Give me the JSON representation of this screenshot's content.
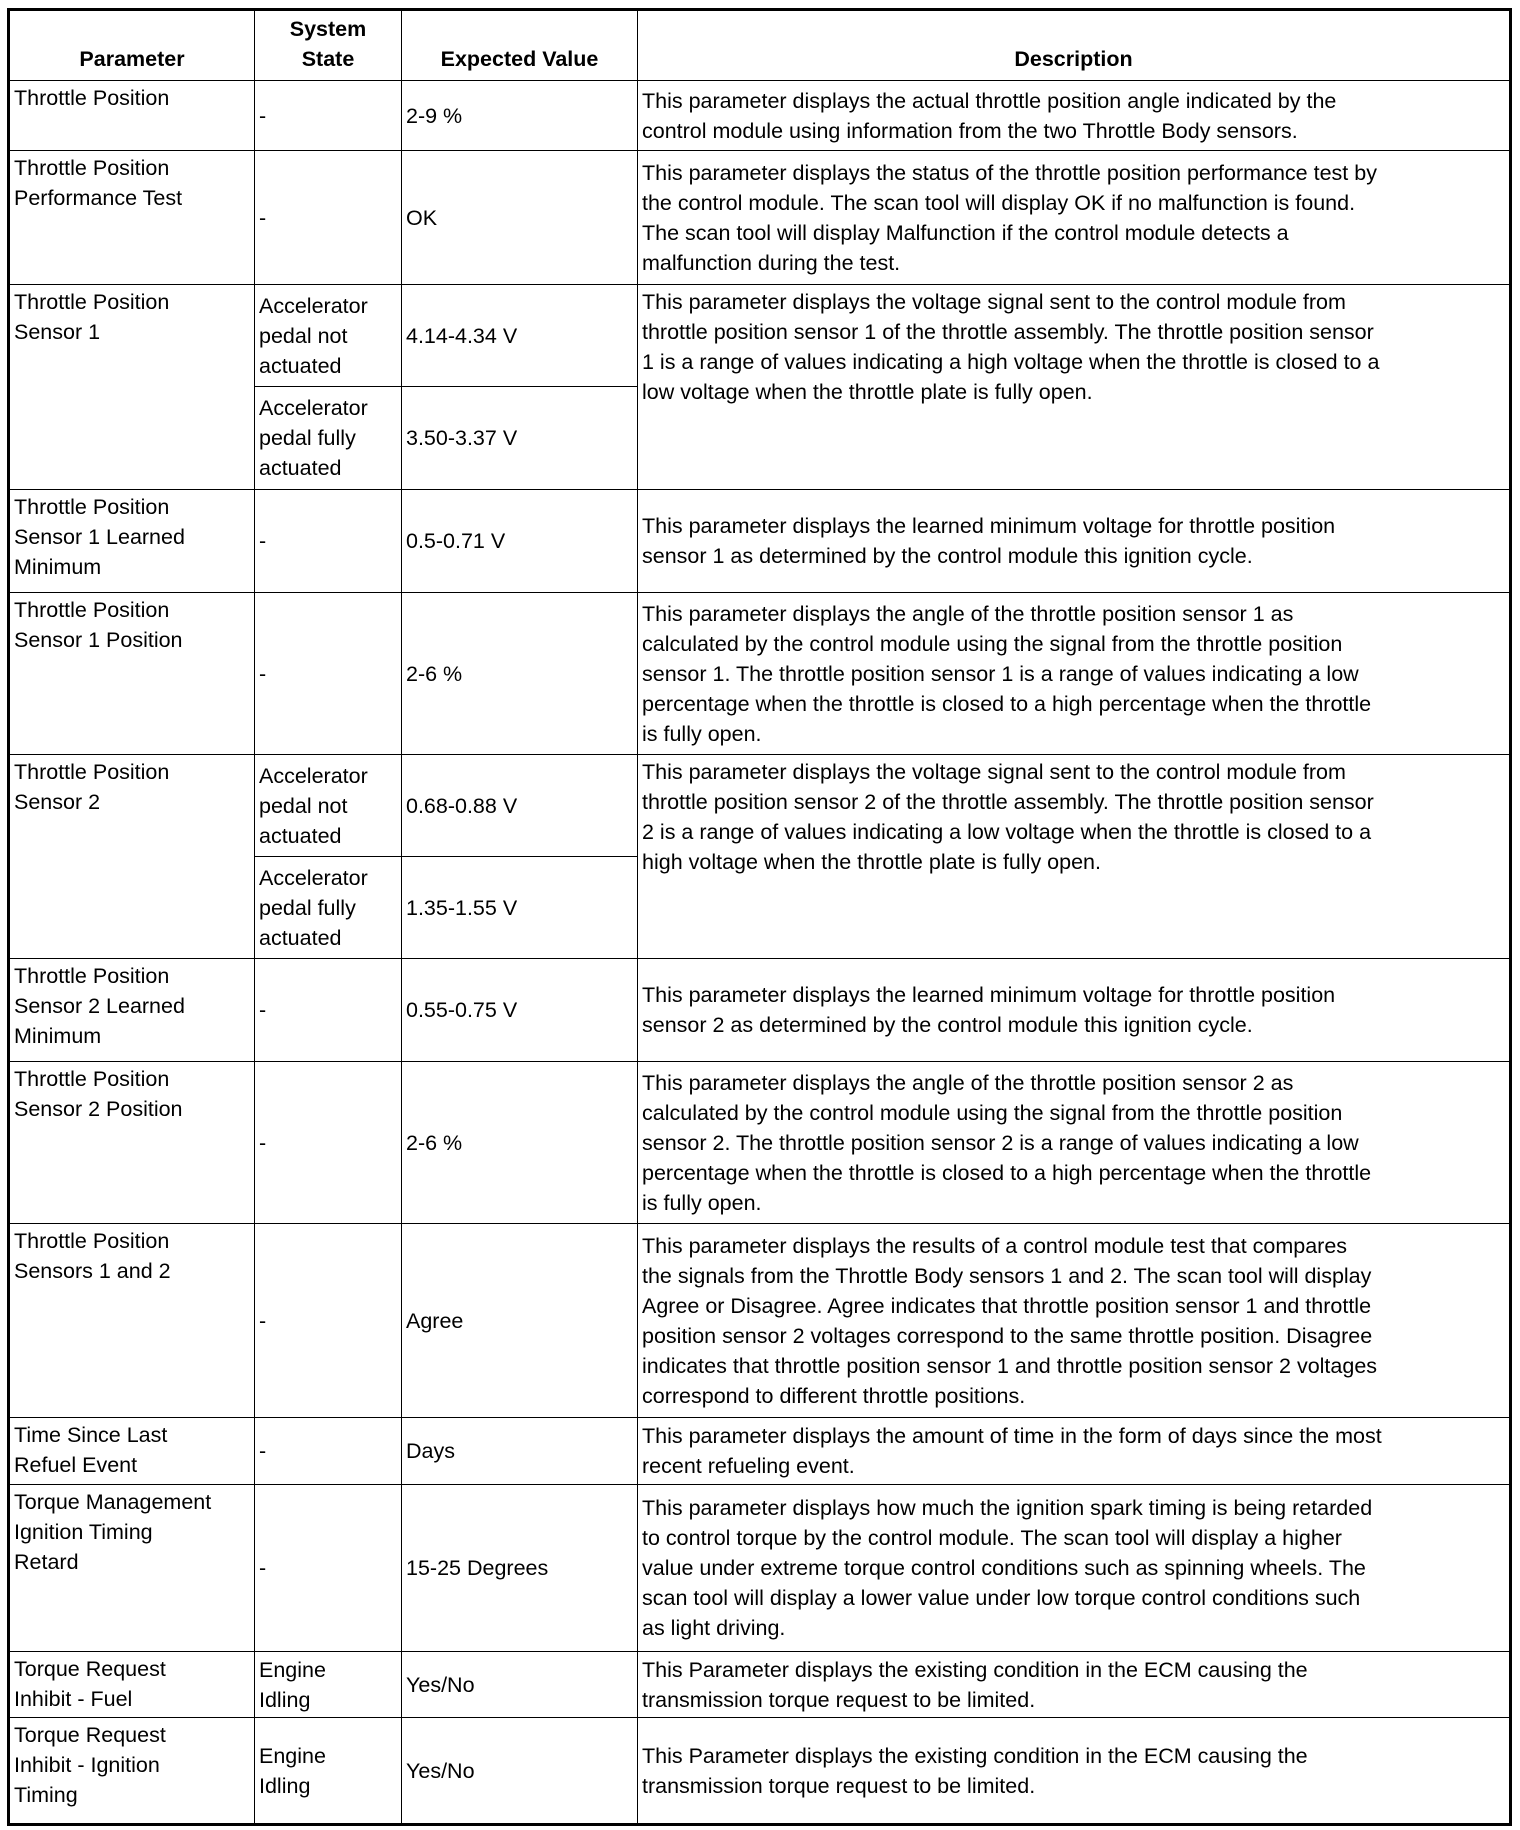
{
  "headers": {
    "parameter": "Parameter",
    "system_state": "System\nState",
    "expected_value": "Expected Value",
    "description": "Description"
  },
  "rows": [
    {
      "parameter": "Throttle Position",
      "entries": [
        {
          "state": "-",
          "value": "2-9 %"
        }
      ],
      "description": "This parameter displays the actual throttle position angle indicated by the\ncontrol module using information from the two Throttle Body sensors."
    },
    {
      "parameter": "Throttle Position\nPerformance Test",
      "entries": [
        {
          "state": "-",
          "value": "OK"
        }
      ],
      "description": "This parameter displays the status of the throttle position performance test by\nthe control module. The scan tool will display OK if no malfunction is found.\nThe scan tool will display Malfunction if the control module detects a\nmalfunction during the test."
    },
    {
      "parameter": "Throttle Position\nSensor 1",
      "entries": [
        {
          "state": "Accelerator\npedal not\nactuated",
          "value": "4.14-4.34 V"
        },
        {
          "state": "Accelerator\npedal fully\nactuated",
          "value": "3.50-3.37 V"
        }
      ],
      "description": "This parameter displays the voltage signal sent to the control module from\nthrottle position sensor 1 of the throttle assembly. The throttle position sensor\n1 is a range of values indicating a high voltage when the throttle is closed to a\nlow voltage when the throttle plate is fully open."
    },
    {
      "parameter": "Throttle Position\nSensor 1 Learned\nMinimum",
      "entries": [
        {
          "state": "-",
          "value": "0.5-0.71 V"
        }
      ],
      "description": "This parameter displays the learned minimum voltage for throttle position\nsensor 1 as determined by the control module this ignition cycle."
    },
    {
      "parameter": "Throttle Position\nSensor 1 Position",
      "entries": [
        {
          "state": "-",
          "value": "2-6 %"
        }
      ],
      "description": "This parameter displays the angle of the throttle position sensor 1 as\ncalculated by the control module using the signal from the throttle position\nsensor 1. The throttle position sensor 1 is a range of values indicating a low\npercentage when the throttle is closed to a high percentage when the throttle\nis fully open."
    },
    {
      "parameter": "Throttle Position\nSensor 2",
      "entries": [
        {
          "state": "Accelerator\npedal not\nactuated",
          "value": "0.68-0.88 V"
        },
        {
          "state": "Accelerator\npedal fully\nactuated",
          "value": "1.35-1.55 V"
        }
      ],
      "description": "This parameter displays the voltage signal sent to the control module from\nthrottle position sensor 2 of the throttle assembly. The throttle position sensor\n2 is a range of values indicating a low voltage when the throttle is closed to a\nhigh voltage when the throttle plate is fully open."
    },
    {
      "parameter": "Throttle Position\nSensor 2 Learned\nMinimum",
      "entries": [
        {
          "state": "-",
          "value": "0.55-0.75 V"
        }
      ],
      "description": "This parameter displays the learned minimum voltage for throttle position\nsensor 2 as determined by the control module this ignition cycle."
    },
    {
      "parameter": "Throttle Position\nSensor 2 Position",
      "entries": [
        {
          "state": "-",
          "value": "2-6 %"
        }
      ],
      "description": "This parameter displays the angle of the throttle position sensor 2 as\ncalculated by the control module using the signal from the throttle position\nsensor 2. The throttle position sensor 2 is a range of values indicating a low\npercentage when the throttle is closed to a high percentage when the throttle\nis fully open."
    },
    {
      "parameter": "Throttle Position\nSensors 1 and 2",
      "entries": [
        {
          "state": "-",
          "value": "Agree"
        }
      ],
      "description": "This parameter displays the results of a control module test that compares\nthe signals from the Throttle Body sensors 1 and 2. The scan tool will display\nAgree or Disagree. Agree indicates that throttle position sensor 1 and throttle\nposition sensor 2 voltages correspond to the same throttle position. Disagree\nindicates that throttle position sensor 1 and throttle position sensor 2 voltages\ncorrespond to different throttle positions."
    },
    {
      "parameter": "Time Since Last\nRefuel Event",
      "entries": [
        {
          "state": "-",
          "value": "Days"
        }
      ],
      "description": "This parameter displays the amount of time in the form of days since the most\nrecent refueling event."
    },
    {
      "parameter": "Torque Management\nIgnition Timing\nRetard",
      "entries": [
        {
          "state": "-",
          "value": "15-25 Degrees"
        }
      ],
      "description": "This parameter displays how much the ignition spark timing is being retarded\nto control torque by the control module. The scan tool will display a higher\nvalue under extreme torque control conditions such as spinning wheels. The\nscan tool will display a lower value under low torque control conditions such\nas light driving."
    },
    {
      "parameter": "Torque Request\nInhibit - Fuel",
      "entries": [
        {
          "state": "Engine\nIdling",
          "value": "Yes/No"
        }
      ],
      "description": "This Parameter displays the existing condition in the ECM causing the\ntransmission torque request to be limited."
    },
    {
      "parameter": "Torque Request\nInhibit - Ignition\nTiming",
      "entries": [
        {
          "state": "Engine\nIdling",
          "value": "Yes/No"
        }
      ],
      "description": "This Parameter displays the existing condition in the ECM causing the\ntransmission torque request to be limited."
    }
  ]
}
